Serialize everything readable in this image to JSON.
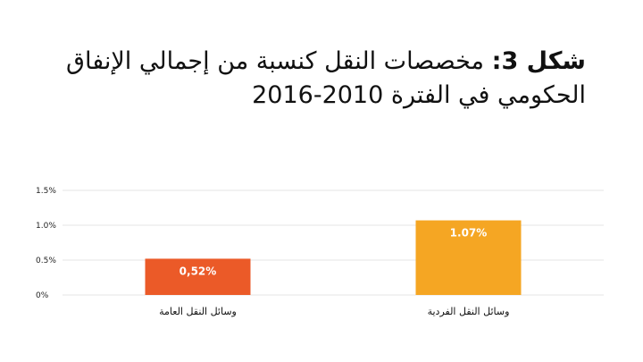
{
  "title": {
    "figure_label": "شكل 3:",
    "text_line1": "مخصصات النقل كنسبة من إجمالي الإنفاق",
    "text_line2": "الحكومي في الفترة 2010-2016"
  },
  "chart_data": {
    "type": "bar",
    "categories": [
      "وسائل النقل العامة",
      "وسائل النقل الفردية"
    ],
    "values": [
      0.52,
      1.07
    ],
    "data_labels": [
      "0,52%",
      "1.07%"
    ],
    "bar_colors": [
      "#eb5a28",
      "#f5a623"
    ],
    "ylim": [
      0,
      1.5
    ],
    "y_ticks": [
      0,
      0.5,
      1.0,
      1.5
    ],
    "y_tick_labels": [
      "0%",
      "0.5%",
      "1.0%",
      "1.5%"
    ],
    "grid": true,
    "grid_color": "#e4e4e4",
    "xlabel": "",
    "ylabel": ""
  }
}
